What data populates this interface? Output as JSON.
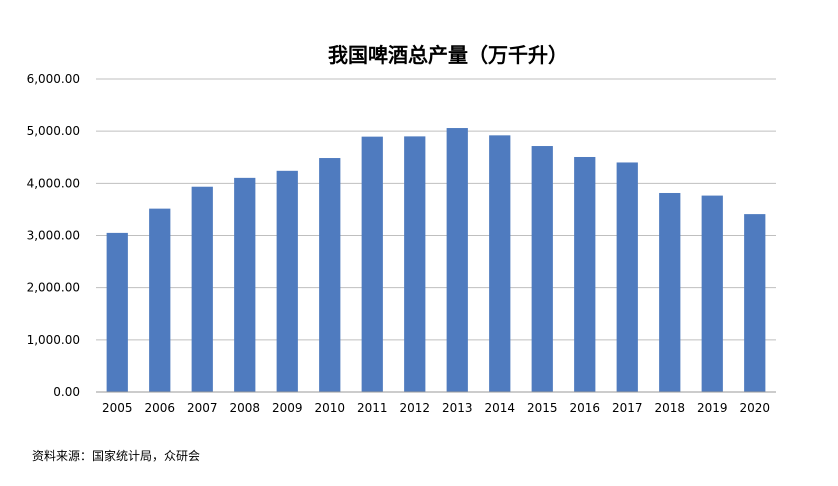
{
  "chart_data": {
    "type": "bar",
    "title": "我国啤酒总产量（万千升）",
    "categories": [
      "2005",
      "2006",
      "2007",
      "2008",
      "2009",
      "2010",
      "2011",
      "2012",
      "2013",
      "2014",
      "2015",
      "2016",
      "2017",
      "2018",
      "2019",
      "2020"
    ],
    "values": [
      3050,
      3515,
      3935,
      4105,
      4240,
      4485,
      4895,
      4900,
      5060,
      4920,
      4715,
      4505,
      4400,
      3815,
      3765,
      3410
    ],
    "ylim": [
      0,
      6000
    ],
    "yticks": [
      "0.00",
      "1,000.00",
      "2,000.00",
      "3,000.00",
      "4,000.00",
      "5,000.00",
      "6,000.00"
    ],
    "bar_color": "#4F7BBF",
    "grid": true
  },
  "source_text": "资料来源：国家统计局，众研会"
}
